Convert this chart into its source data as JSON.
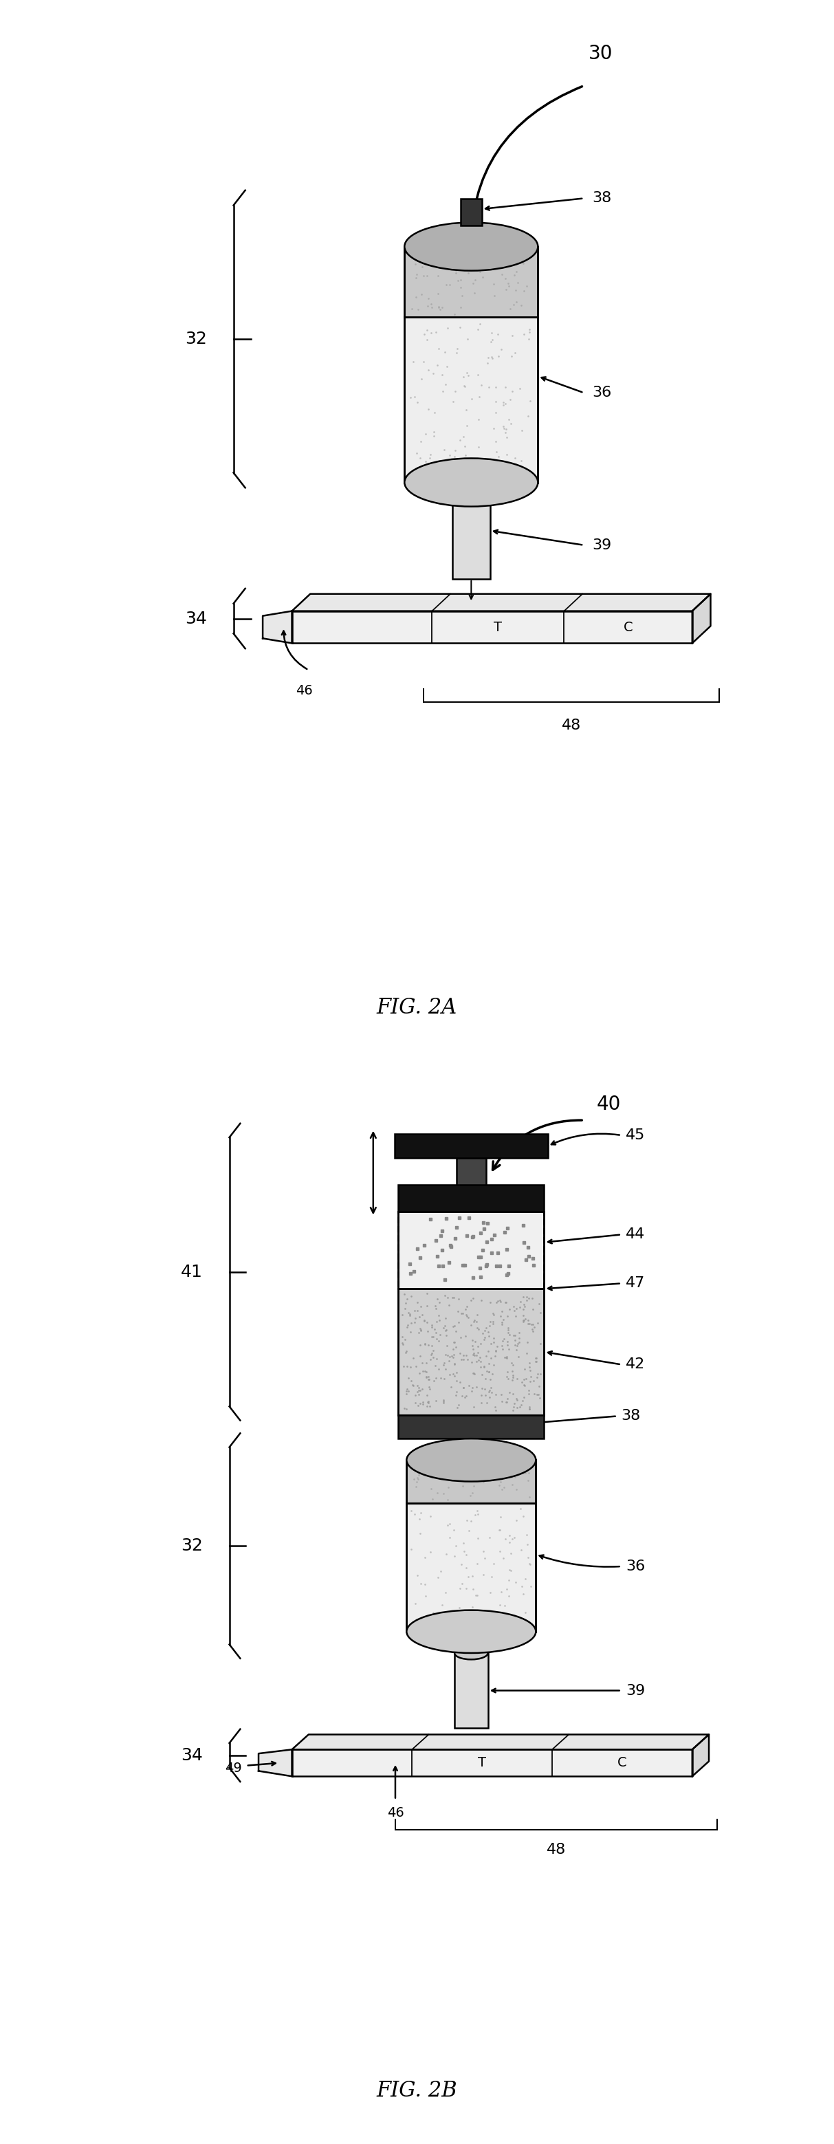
{
  "bg_color": "#ffffff",
  "line_color": "#000000",
  "fig2a": {
    "title": "FIG. 2A",
    "label_30": "30",
    "label_32": "32",
    "label_34": "34",
    "label_36": "36",
    "label_38": "38",
    "label_39": "39",
    "label_46": "46",
    "label_48": "48",
    "label_T": "T",
    "label_C": "C"
  },
  "fig2b": {
    "title": "FIG. 2B",
    "label_40": "40",
    "label_41": "41",
    "label_32": "32",
    "label_34": "34",
    "label_36": "36",
    "label_38": "38",
    "label_39": "39",
    "label_42": "42",
    "label_44": "44",
    "label_45": "45",
    "label_46": "46",
    "label_47": "47",
    "label_48": "48",
    "label_49": "49",
    "label_T": "T",
    "label_C": "C"
  }
}
